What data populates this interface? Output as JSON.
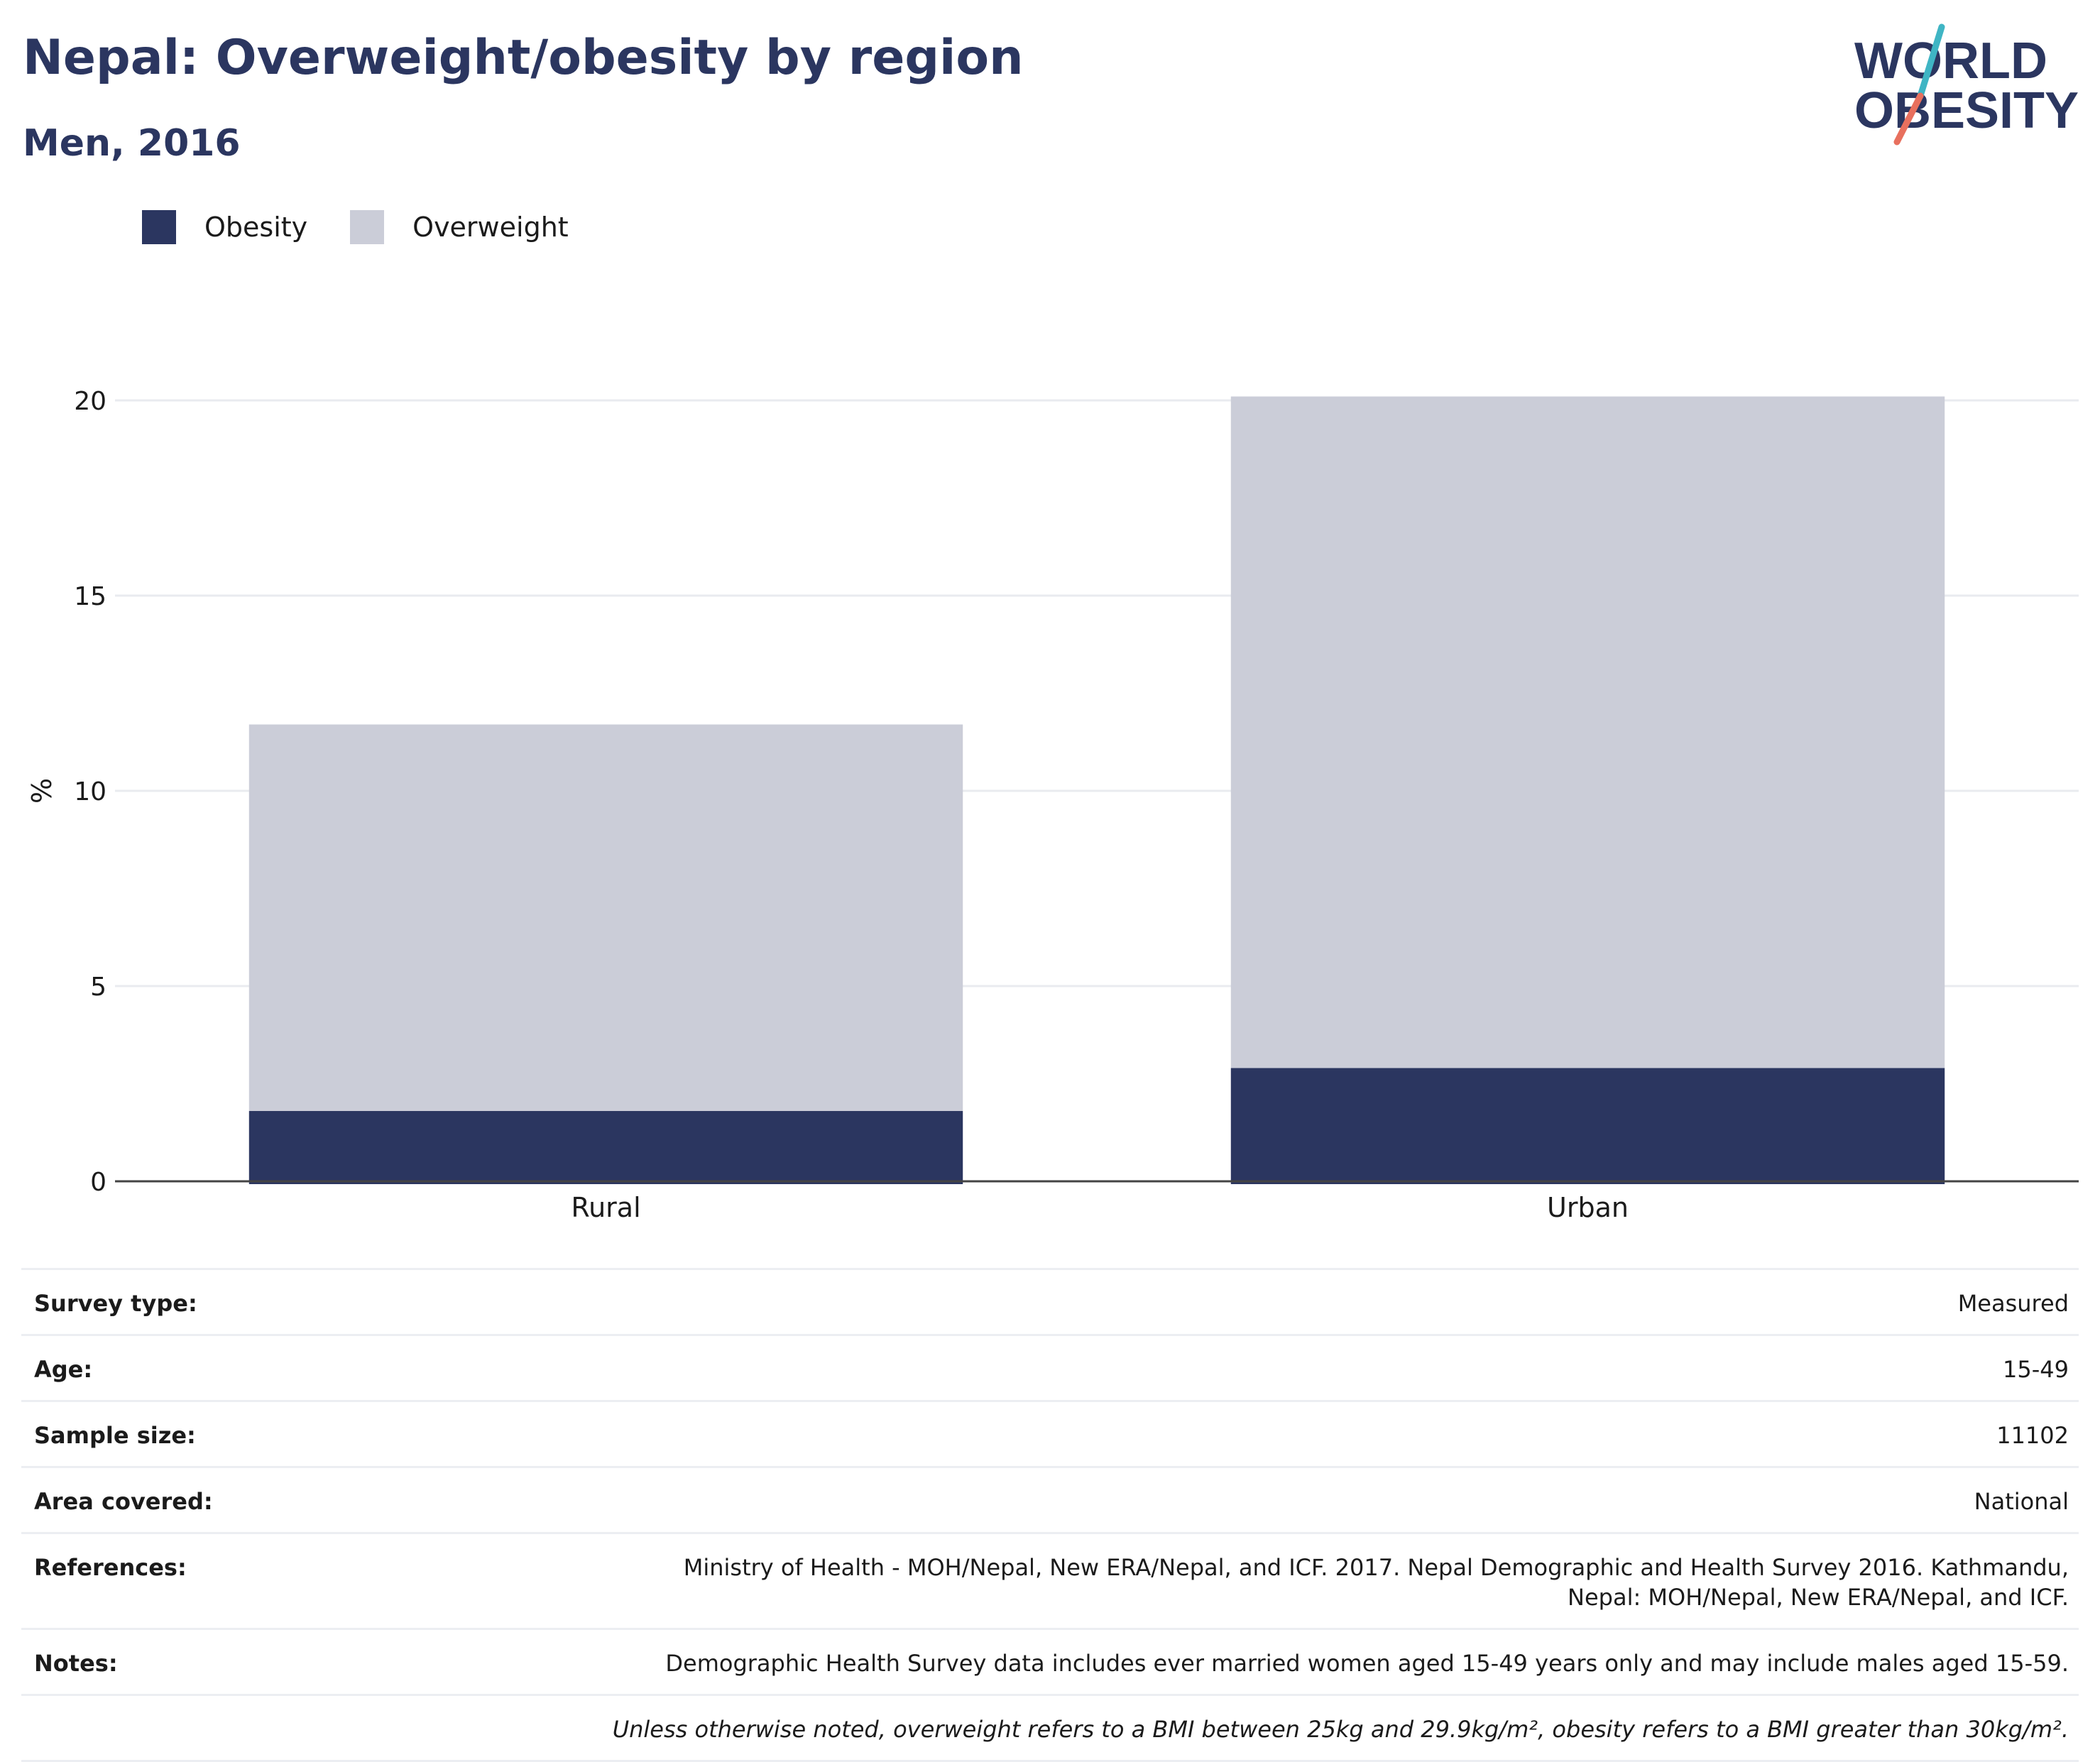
{
  "header": {
    "title": "Nepal: Overweight/obesity by region",
    "subtitle": "Men, 2016"
  },
  "logo": {
    "line1": "WORLD",
    "line2": "OBESITY",
    "colors": {
      "text": "#2b3660",
      "slash_top": "#3fb5c4",
      "slash_bottom": "#e8705e"
    }
  },
  "legend": [
    {
      "label": "Obesity",
      "color": "#2b3660"
    },
    {
      "label": "Overweight",
      "color": "#cbcdd8"
    }
  ],
  "chart_data": {
    "type": "bar",
    "stacked": true,
    "categories": [
      "Rural",
      "Urban"
    ],
    "series": [
      {
        "name": "Obesity",
        "values": [
          1.8,
          2.9
        ],
        "color": "#2b3660"
      },
      {
        "name": "Overweight",
        "values": [
          9.9,
          17.2
        ],
        "color": "#cbcdd8"
      }
    ],
    "ylabel": "%",
    "ylim": [
      0,
      20
    ],
    "yticks": [
      0,
      5,
      10,
      15,
      20
    ],
    "grid": true,
    "legend_position": "top-left"
  },
  "meta": {
    "rows": [
      {
        "label": "Survey type:",
        "value": "Measured"
      },
      {
        "label": "Age:",
        "value": "15-49"
      },
      {
        "label": "Sample size:",
        "value": "11102"
      },
      {
        "label": "Area covered:",
        "value": "National"
      },
      {
        "label": "References:",
        "value": "Ministry of Health - MOH/Nepal, New ERA/Nepal, and ICF. 2017. Nepal Demographic and Health Survey 2016. Kathmandu, Nepal: MOH/Nepal, New ERA/Nepal, and ICF."
      },
      {
        "label": "Notes:",
        "value": "Demographic Health Survey data includes ever married women aged 15-49 years only and may include males aged 15-59."
      }
    ],
    "footnote": "Unless otherwise noted, overweight refers to a BMI between 25kg and 29.9kg/m², obesity refers to a BMI greater than 30kg/m²."
  }
}
